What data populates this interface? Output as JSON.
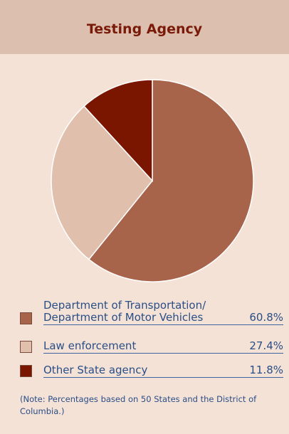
{
  "chart_data": {
    "type": "pie",
    "title": "Testing Agency",
    "categories": [
      "Department of Transportation/ Department of Motor Vehicles",
      "Law enforcement",
      "Other State agency"
    ],
    "values": [
      60.8,
      27.4,
      11.8
    ],
    "value_labels": [
      "60.8%",
      "27.4%",
      "11.8%"
    ],
    "colors": [
      "#a8644a",
      "#e0bfad",
      "#7a1500"
    ],
    "note": "(Note: Percentages based on 50 States and the District of Columbia.)"
  }
}
